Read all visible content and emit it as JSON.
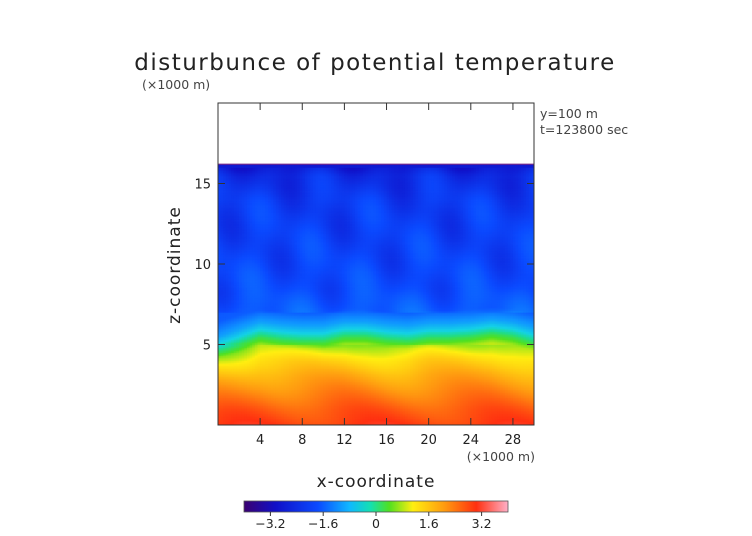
{
  "chart_data": {
    "type": "heatmap",
    "title": "disturbunce of potential temperature",
    "z_unit": "(×1000 m)",
    "x_unit": "(×1000 m)",
    "xlabel": "x-coordinate",
    "ylabel": "z-coordinate",
    "annotations": [
      "y=100 m",
      "t=123800 sec"
    ],
    "xlim": [
      0,
      30
    ],
    "ylim": [
      0,
      20
    ],
    "x_ticks": [
      4,
      8,
      12,
      16,
      20,
      24,
      28
    ],
    "y_ticks": [
      5,
      10,
      15
    ],
    "top_of_field_z": 16.2,
    "colorbar": {
      "range": [
        -4,
        4
      ],
      "tick_values": [
        -3.2,
        -1.6,
        0,
        1.6,
        3.2
      ],
      "tick_labels": [
        "−3.2",
        "−1.6",
        "0",
        "1.6",
        "3.2"
      ]
    },
    "profile": [
      {
        "z": 0.0,
        "value": 2.9
      },
      {
        "z": 1.0,
        "value": 2.6
      },
      {
        "z": 2.0,
        "value": 2.2
      },
      {
        "z": 3.0,
        "value": 1.8
      },
      {
        "z": 4.0,
        "value": 1.3
      },
      {
        "z": 4.7,
        "value": 0.8
      },
      {
        "z": 5.2,
        "value": 0.1
      },
      {
        "z": 5.7,
        "value": -0.8
      },
      {
        "z": 6.2,
        "value": -1.5
      },
      {
        "z": 7.0,
        "value": -2.2
      },
      {
        "z": 8.5,
        "value": -2.4
      },
      {
        "z": 11.0,
        "value": -2.5
      },
      {
        "z": 14.0,
        "value": -2.6
      },
      {
        "z": 15.5,
        "value": -2.8
      },
      {
        "z": 16.2,
        "value": -3.1
      }
    ],
    "inversion_height": [
      {
        "x": 0,
        "z": 4.9
      },
      {
        "x": 2,
        "z": 5.4
      },
      {
        "x": 4,
        "z": 5.9
      },
      {
        "x": 6,
        "z": 5.7
      },
      {
        "x": 8,
        "z": 5.6
      },
      {
        "x": 10,
        "z": 5.6
      },
      {
        "x": 12,
        "z": 5.9
      },
      {
        "x": 14,
        "z": 5.9
      },
      {
        "x": 16,
        "z": 5.7
      },
      {
        "x": 18,
        "z": 5.6
      },
      {
        "x": 20,
        "z": 5.8
      },
      {
        "x": 22,
        "z": 5.8
      },
      {
        "x": 24,
        "z": 5.9
      },
      {
        "x": 26,
        "z": 6.1
      },
      {
        "x": 28,
        "z": 5.9
      },
      {
        "x": 30,
        "z": 5.5
      }
    ]
  }
}
